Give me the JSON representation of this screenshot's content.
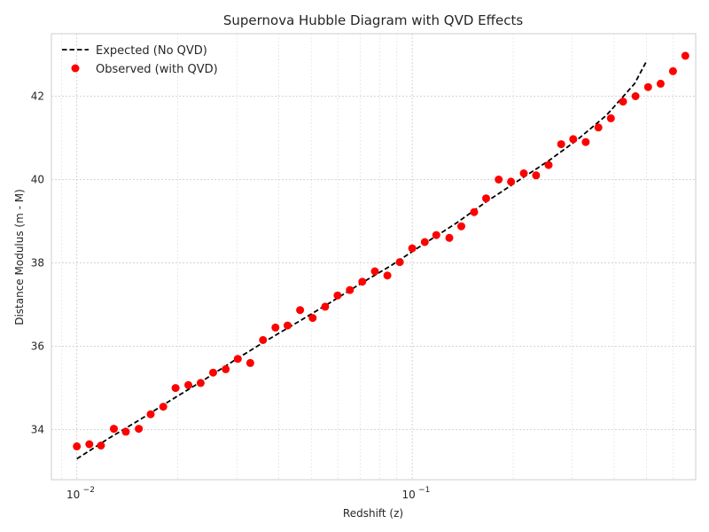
{
  "chart_data": {
    "type": "scatter",
    "title": "Supernova Hubble Diagram with QVD Effects",
    "xlabel": "Redshift (z)",
    "ylabel": "Distance Modulus (m - M)",
    "x_scale": "log",
    "xlim": [
      0.0084,
      0.7
    ],
    "ylim": [
      32.8,
      43.5
    ],
    "grid": true,
    "legend_position": "top-left",
    "x_ticks": [
      {
        "value": 0.01,
        "base": "10",
        "exp": "−2"
      },
      {
        "value": 0.1,
        "base": "10",
        "exp": "−1"
      }
    ],
    "y_ticks": [
      34,
      36,
      38,
      40,
      42
    ],
    "series": [
      {
        "name": "Expected (No QVD)",
        "style": "dashed-line",
        "color": "#000000",
        "x": [
          0.01,
          0.0125,
          0.0155,
          0.019,
          0.024,
          0.03,
          0.037,
          0.046,
          0.057,
          0.07,
          0.087,
          0.108,
          0.135,
          0.165,
          0.205,
          0.255,
          0.31,
          0.38,
          0.46,
          0.5
        ],
        "y": [
          33.3,
          33.8,
          34.25,
          34.7,
          35.2,
          35.7,
          36.15,
          36.6,
          37.05,
          37.5,
          37.95,
          38.45,
          38.95,
          39.45,
          39.95,
          40.45,
          40.95,
          41.55,
          42.3,
          42.85
        ]
      },
      {
        "name": "Observed (with QVD)",
        "style": "markers",
        "color": "#ff0000",
        "x": [
          0.01,
          0.0109,
          0.0118,
          0.0129,
          0.014,
          0.0153,
          0.0166,
          0.0181,
          0.0197,
          0.0215,
          0.0234,
          0.0255,
          0.0278,
          0.0302,
          0.0329,
          0.0359,
          0.0391,
          0.0425,
          0.0463,
          0.0505,
          0.055,
          0.0599,
          0.0652,
          0.071,
          0.0774,
          0.0843,
          0.0918,
          0.1,
          0.109,
          0.118,
          0.129,
          0.14,
          0.153,
          0.166,
          0.181,
          0.197,
          0.215,
          0.234,
          0.255,
          0.278,
          0.302,
          0.329,
          0.359,
          0.391,
          0.425,
          0.463,
          0.505,
          0.55,
          0.599,
          0.652,
          0.71
        ],
        "y": [
          33.6,
          33.65,
          33.62,
          34.02,
          33.95,
          34.02,
          34.37,
          34.55,
          35.0,
          35.07,
          35.12,
          35.37,
          35.45,
          35.7,
          35.6,
          36.15,
          36.45,
          36.5,
          36.87,
          36.68,
          36.95,
          37.22,
          37.35,
          37.55,
          37.8,
          37.7,
          38.02,
          38.35,
          38.5,
          38.67,
          38.6,
          38.88,
          39.22,
          39.55,
          40.0,
          39.95,
          40.15,
          40.1,
          40.35,
          40.85,
          40.97,
          40.9,
          41.25,
          41.47,
          41.87,
          42.0,
          42.22,
          42.3,
          42.6,
          42.97,
          42.97
        ]
      }
    ]
  }
}
